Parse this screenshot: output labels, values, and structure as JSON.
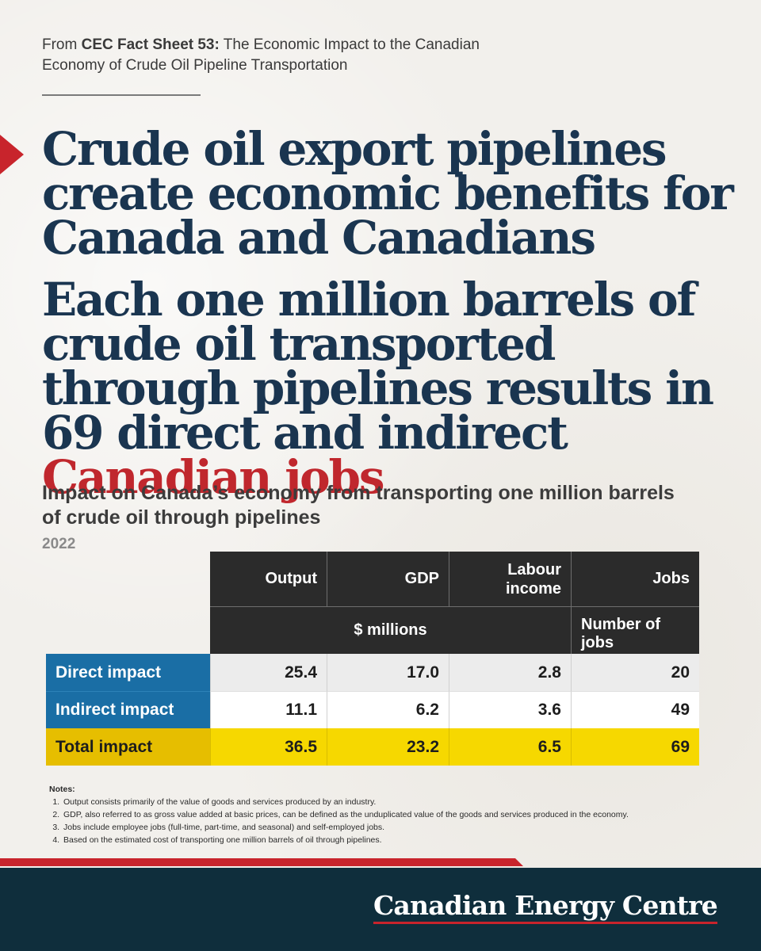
{
  "source": {
    "prefix": "From ",
    "bold": "CEC Fact Sheet 53:",
    "rest": " The Economic Impact to the Canadian Economy of Crude Oil Pipeline Transportation"
  },
  "headline1": "Crude oil export pipelines create economic benefits for Canada and Canadians",
  "headline2": {
    "main": "Each one million barrels of crude oil transported through pipelines results in 69 direct and indirect ",
    "highlight": "Canadian jobs"
  },
  "table": {
    "title": "Impact on Canada’s economy from transporting one million barrels of crude oil through pipelines",
    "year": "2022",
    "columns": [
      "Output",
      "GDP",
      "Labour income",
      "Jobs"
    ],
    "units": {
      "dollars": "$ millions",
      "jobs": "Number of jobs"
    },
    "rows": [
      {
        "label": "Direct impact",
        "values": [
          "25.4",
          "17.0",
          "2.8",
          "20"
        ]
      },
      {
        "label": "Indirect impact",
        "values": [
          "11.1",
          "6.2",
          "3.6",
          "49"
        ]
      },
      {
        "label": "Total impact",
        "values": [
          "36.5",
          "23.2",
          "6.5",
          "69"
        ]
      }
    ]
  },
  "notes": {
    "title": "Notes:",
    "items": [
      "Output consists primarily of the value of goods and services produced by an industry.",
      "GDP, also referred to as gross value added at basic prices, can be defined as the unduplicated value of the goods and services produced in the economy.",
      "Jobs include employee jobs (full-time, part-time, and seasonal) and self-employed jobs.",
      "Based on the estimated cost of transporting one million barrels of oil through pipelines."
    ]
  },
  "footer": {
    "brand": "Canadian Energy Centre"
  },
  "colors": {
    "headline": "#1a3550",
    "accent_red": "#c0272d",
    "header_dark": "#2b2b2b",
    "label_blue": "#1a6ea5",
    "total_yellow": "#f6d800",
    "footer_navy": "#0f2e3c"
  }
}
